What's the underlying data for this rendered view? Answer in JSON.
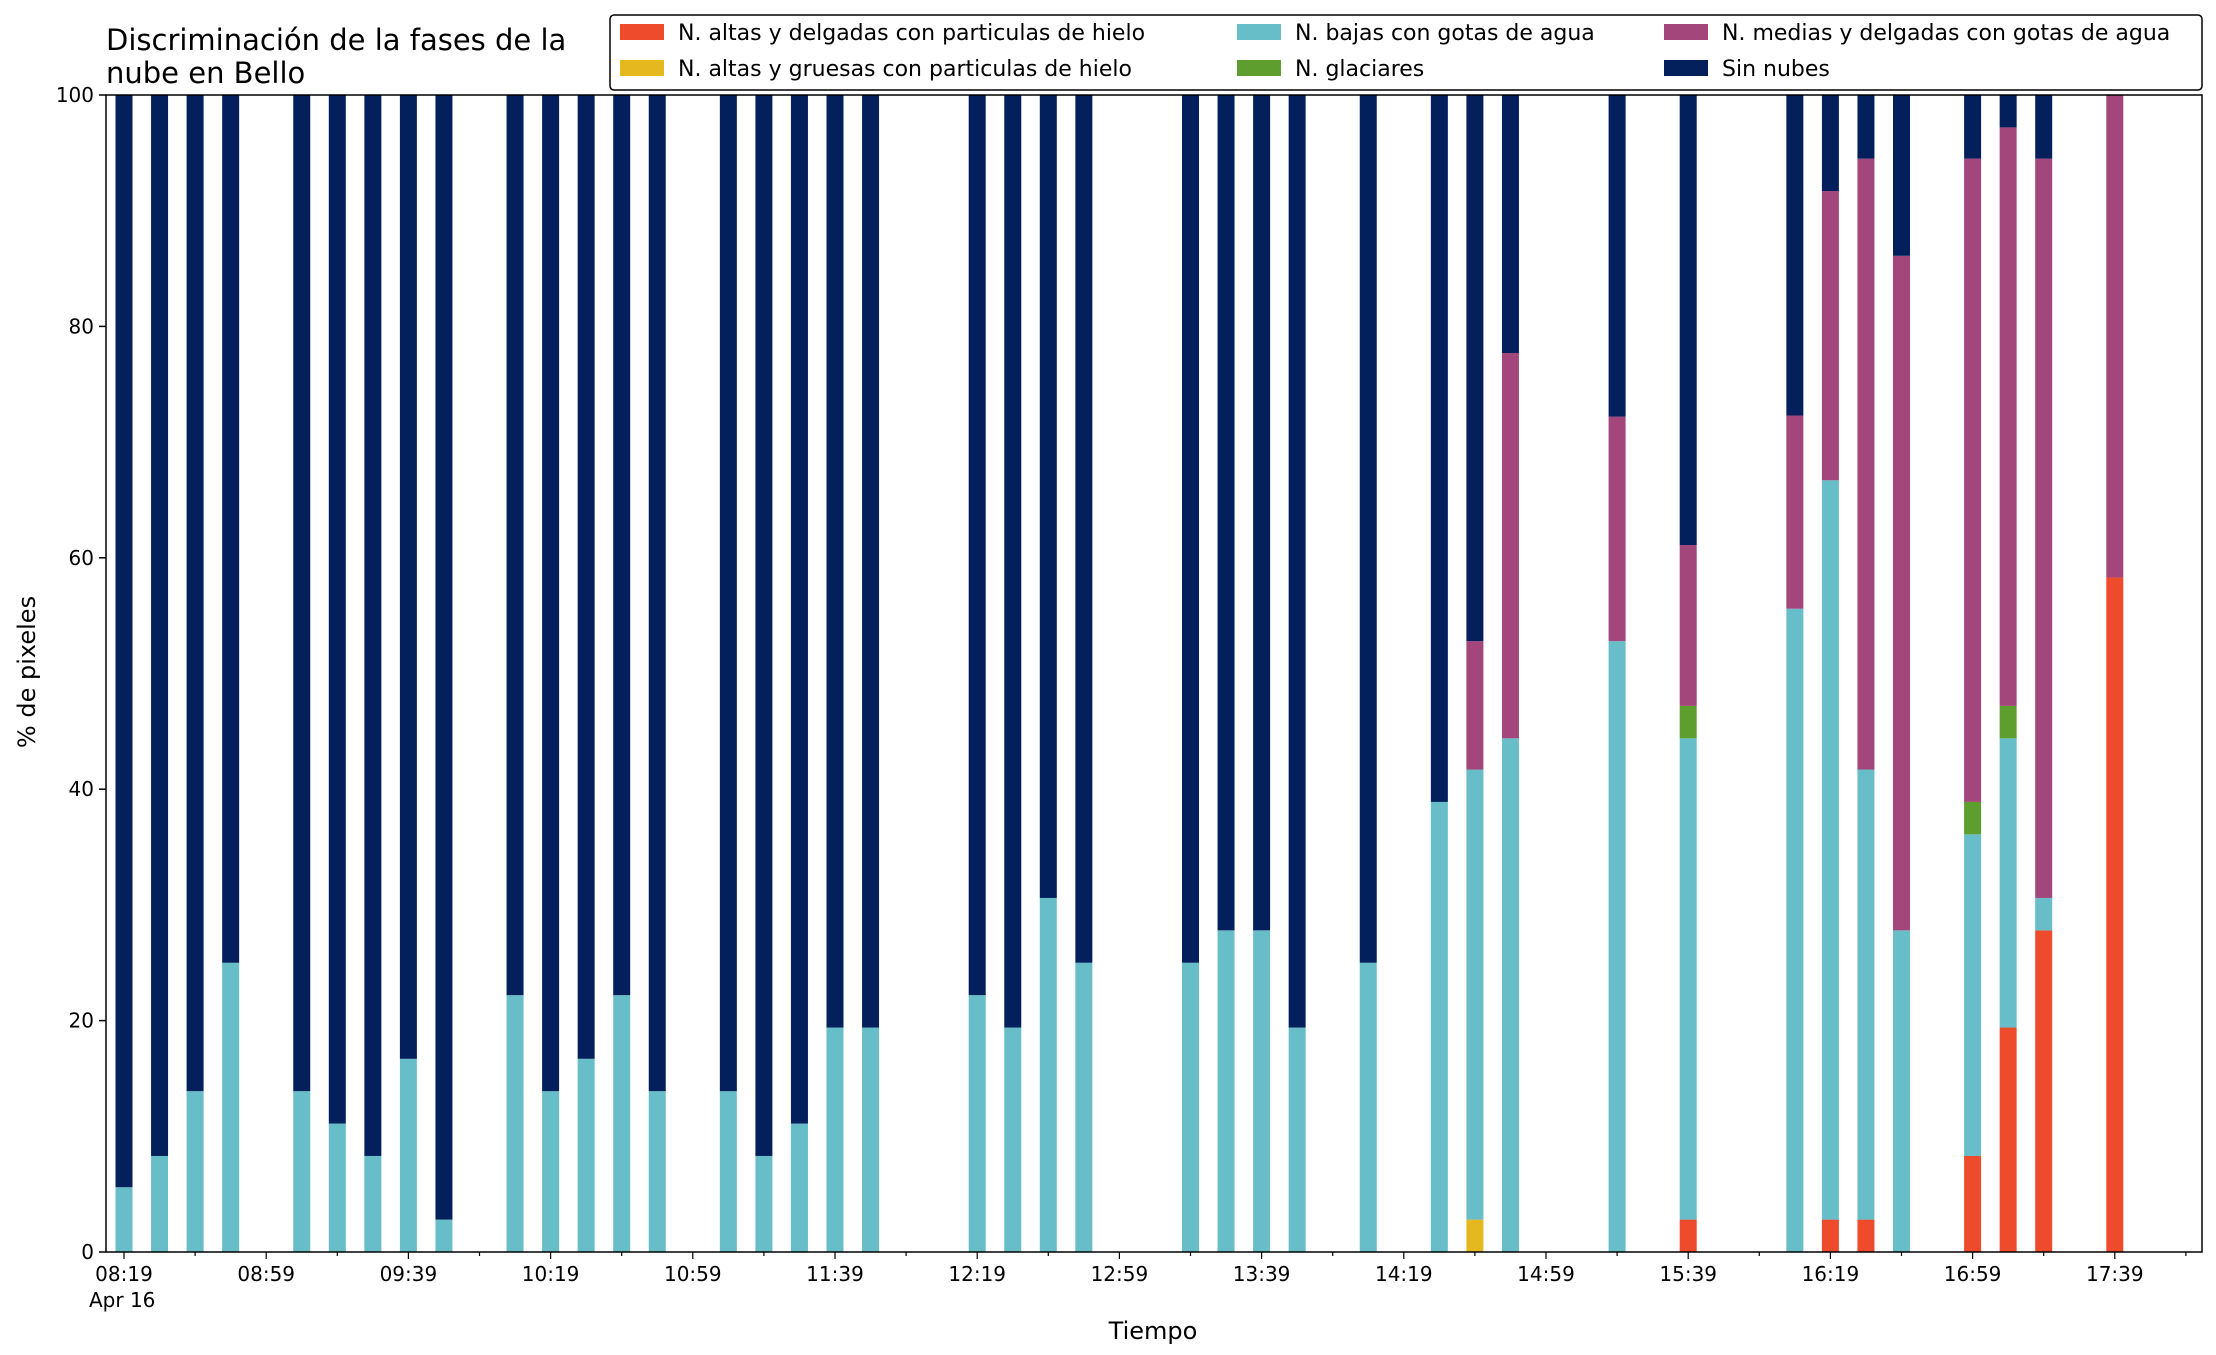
{
  "chart_data": {
    "type": "bar",
    "stacked": true,
    "title_lines": [
      "Discriminación de la fases de la",
      "nube en Bello"
    ],
    "xlabel": "Tiempo",
    "ylabel": "% de pixeles",
    "ylim": [
      0,
      100
    ],
    "yticks": [
      0,
      20,
      40,
      60,
      80,
      100
    ],
    "x_start_time": "08:19",
    "x_date_label": "Apr 16",
    "x_tick_labels": [
      "08:19",
      "08:59",
      "09:39",
      "10:19",
      "10:59",
      "11:39",
      "12:19",
      "12:59",
      "13:39",
      "14:19",
      "14:59",
      "15:39",
      "16:19",
      "16:59",
      "17:39"
    ],
    "grid": false,
    "legend_position": "top-right",
    "series": [
      {
        "key": "altas_delgadas",
        "name": "N. altas y delgadas con particulas de hielo",
        "color": "#ee4a2c"
      },
      {
        "key": "altas_gruesas",
        "name": "N. altas y gruesas con particulas de hielo",
        "color": "#e6b81f"
      },
      {
        "key": "bajas",
        "name": "N. bajas con gotas de agua",
        "color": "#67bdc8"
      },
      {
        "key": "glaciares",
        "name": "N. glaciares",
        "color": "#5e9e2e"
      },
      {
        "key": "medias",
        "name": "N. medias y delgadas con gotas de agua",
        "color": "#a3467b"
      },
      {
        "key": "sin_nubes",
        "name": "Sin nubes",
        "color": "#03205d"
      }
    ],
    "bars": [
      {
        "time": "08:19",
        "altas_delgadas": 0,
        "altas_gruesas": 0,
        "bajas": 5.6,
        "glaciares": 0,
        "medias": 0,
        "sin_nubes": 94.4
      },
      {
        "time": "08:29",
        "altas_delgadas": 0,
        "altas_gruesas": 0,
        "bajas": 8.3,
        "glaciares": 0,
        "medias": 0,
        "sin_nubes": 91.7
      },
      {
        "time": "08:39",
        "altas_delgadas": 0,
        "altas_gruesas": 0,
        "bajas": 13.9,
        "glaciares": 0,
        "medias": 0,
        "sin_nubes": 86.1
      },
      {
        "time": "08:49",
        "altas_delgadas": 0,
        "altas_gruesas": 0,
        "bajas": 25.0,
        "glaciares": 0,
        "medias": 0,
        "sin_nubes": 75.0
      },
      {
        "time": "09:09",
        "altas_delgadas": 0,
        "altas_gruesas": 0,
        "bajas": 13.9,
        "glaciares": 0,
        "medias": 0,
        "sin_nubes": 86.1
      },
      {
        "time": "09:19",
        "altas_delgadas": 0,
        "altas_gruesas": 0,
        "bajas": 11.1,
        "glaciares": 0,
        "medias": 0,
        "sin_nubes": 88.9
      },
      {
        "time": "09:29",
        "altas_delgadas": 0,
        "altas_gruesas": 0,
        "bajas": 8.3,
        "glaciares": 0,
        "medias": 0,
        "sin_nubes": 91.7
      },
      {
        "time": "09:39",
        "altas_delgadas": 0,
        "altas_gruesas": 0,
        "bajas": 16.7,
        "glaciares": 0,
        "medias": 0,
        "sin_nubes": 83.3
      },
      {
        "time": "09:49",
        "altas_delgadas": 0,
        "altas_gruesas": 0,
        "bajas": 2.8,
        "glaciares": 0,
        "medias": 0,
        "sin_nubes": 97.2
      },
      {
        "time": "10:09",
        "altas_delgadas": 0,
        "altas_gruesas": 0,
        "bajas": 22.2,
        "glaciares": 0,
        "medias": 0,
        "sin_nubes": 77.8
      },
      {
        "time": "10:19",
        "altas_delgadas": 0,
        "altas_gruesas": 0,
        "bajas": 13.9,
        "glaciares": 0,
        "medias": 0,
        "sin_nubes": 86.1
      },
      {
        "time": "10:29",
        "altas_delgadas": 0,
        "altas_gruesas": 0,
        "bajas": 16.7,
        "glaciares": 0,
        "medias": 0,
        "sin_nubes": 83.3
      },
      {
        "time": "10:39",
        "altas_delgadas": 0,
        "altas_gruesas": 0,
        "bajas": 22.2,
        "glaciares": 0,
        "medias": 0,
        "sin_nubes": 77.8
      },
      {
        "time": "10:49",
        "altas_delgadas": 0,
        "altas_gruesas": 0,
        "bajas": 13.9,
        "glaciares": 0,
        "medias": 0,
        "sin_nubes": 86.1
      },
      {
        "time": "11:09",
        "altas_delgadas": 0,
        "altas_gruesas": 0,
        "bajas": 13.9,
        "glaciares": 0,
        "medias": 0,
        "sin_nubes": 86.1
      },
      {
        "time": "11:19",
        "altas_delgadas": 0,
        "altas_gruesas": 0,
        "bajas": 8.3,
        "glaciares": 0,
        "medias": 0,
        "sin_nubes": 91.7
      },
      {
        "time": "11:29",
        "altas_delgadas": 0,
        "altas_gruesas": 0,
        "bajas": 11.1,
        "glaciares": 0,
        "medias": 0,
        "sin_nubes": 88.9
      },
      {
        "time": "11:39",
        "altas_delgadas": 0,
        "altas_gruesas": 0,
        "bajas": 19.4,
        "glaciares": 0,
        "medias": 0,
        "sin_nubes": 80.6
      },
      {
        "time": "11:49",
        "altas_delgadas": 0,
        "altas_gruesas": 0,
        "bajas": 19.4,
        "glaciares": 0,
        "medias": 0,
        "sin_nubes": 80.6
      },
      {
        "time": "12:19",
        "altas_delgadas": 0,
        "altas_gruesas": 0,
        "bajas": 22.2,
        "glaciares": 0,
        "medias": 0,
        "sin_nubes": 77.8
      },
      {
        "time": "12:29",
        "altas_delgadas": 0,
        "altas_gruesas": 0,
        "bajas": 19.4,
        "glaciares": 0,
        "medias": 0,
        "sin_nubes": 80.6
      },
      {
        "time": "12:39",
        "altas_delgadas": 0,
        "altas_gruesas": 0,
        "bajas": 30.6,
        "glaciares": 0,
        "medias": 0,
        "sin_nubes": 69.4
      },
      {
        "time": "12:49",
        "altas_delgadas": 0,
        "altas_gruesas": 0,
        "bajas": 25.0,
        "glaciares": 0,
        "medias": 0,
        "sin_nubes": 75.0
      },
      {
        "time": "13:19",
        "altas_delgadas": 0,
        "altas_gruesas": 0,
        "bajas": 25.0,
        "glaciares": 0,
        "medias": 0,
        "sin_nubes": 75.0
      },
      {
        "time": "13:29",
        "altas_delgadas": 0,
        "altas_gruesas": 0,
        "bajas": 27.8,
        "glaciares": 0,
        "medias": 0,
        "sin_nubes": 72.2
      },
      {
        "time": "13:39",
        "altas_delgadas": 0,
        "altas_gruesas": 0,
        "bajas": 27.8,
        "glaciares": 0,
        "medias": 0,
        "sin_nubes": 72.2
      },
      {
        "time": "13:49",
        "altas_delgadas": 0,
        "altas_gruesas": 0,
        "bajas": 19.4,
        "glaciares": 0,
        "medias": 0,
        "sin_nubes": 80.6
      },
      {
        "time": "14:09",
        "altas_delgadas": 0,
        "altas_gruesas": 0,
        "bajas": 25.0,
        "glaciares": 0,
        "medias": 0,
        "sin_nubes": 75.0
      },
      {
        "time": "14:29",
        "altas_delgadas": 0,
        "altas_gruesas": 0,
        "bajas": 38.9,
        "glaciares": 0,
        "medias": 0,
        "sin_nubes": 61.1
      },
      {
        "time": "14:39",
        "altas_delgadas": 0,
        "altas_gruesas": 2.8,
        "bajas": 38.9,
        "glaciares": 0,
        "medias": 11.1,
        "sin_nubes": 47.2
      },
      {
        "time": "14:49",
        "altas_delgadas": 0,
        "altas_gruesas": 0,
        "bajas": 44.4,
        "glaciares": 0,
        "medias": 33.3,
        "sin_nubes": 22.3
      },
      {
        "time": "15:19",
        "altas_delgadas": 0,
        "altas_gruesas": 0,
        "bajas": 52.8,
        "glaciares": 0,
        "medias": 19.4,
        "sin_nubes": 27.8
      },
      {
        "time": "15:39",
        "altas_delgadas": 2.8,
        "altas_gruesas": 0,
        "bajas": 41.6,
        "glaciares": 2.8,
        "medias": 13.9,
        "sin_nubes": 38.9
      },
      {
        "time": "16:09",
        "altas_delgadas": 0,
        "altas_gruesas": 0,
        "bajas": 55.6,
        "glaciares": 0,
        "medias": 16.7,
        "sin_nubes": 27.7
      },
      {
        "time": "16:19",
        "altas_delgadas": 2.8,
        "altas_gruesas": 0,
        "bajas": 63.9,
        "glaciares": 0,
        "medias": 25.0,
        "sin_nubes": 8.3
      },
      {
        "time": "16:29",
        "altas_delgadas": 2.8,
        "altas_gruesas": 0,
        "bajas": 38.9,
        "glaciares": 0,
        "medias": 52.8,
        "sin_nubes": 5.5
      },
      {
        "time": "16:39",
        "altas_delgadas": 0,
        "altas_gruesas": 0,
        "bajas": 27.8,
        "glaciares": 0,
        "medias": 58.3,
        "sin_nubes": 13.9
      },
      {
        "time": "16:59",
        "altas_delgadas": 8.3,
        "altas_gruesas": 0,
        "bajas": 27.8,
        "glaciares": 2.8,
        "medias": 55.6,
        "sin_nubes": 5.5
      },
      {
        "time": "17:09",
        "altas_delgadas": 19.4,
        "altas_gruesas": 0,
        "bajas": 25.0,
        "glaciares": 2.8,
        "medias": 50.0,
        "sin_nubes": 2.8
      },
      {
        "time": "17:19",
        "altas_delgadas": 27.8,
        "altas_gruesas": 0,
        "bajas": 2.8,
        "glaciares": 0,
        "medias": 63.9,
        "sin_nubes": 5.5
      },
      {
        "time": "17:39",
        "altas_delgadas": 58.3,
        "altas_gruesas": 0,
        "bajas": 0,
        "glaciares": 0,
        "medias": 41.7,
        "sin_nubes": 0
      }
    ]
  }
}
